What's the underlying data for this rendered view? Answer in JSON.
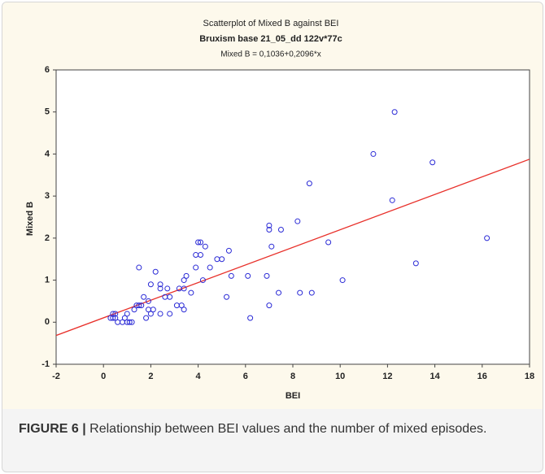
{
  "chart_data": {
    "type": "scatter",
    "title": "Scatterplot of Mixed B against BEI",
    "subtitle": "Bruxism base 21_05_dd 122v*77c",
    "annotation": "Mixed B = 0,1036+0,2096*x",
    "xlabel": "BEI",
    "ylabel": "Mixed B",
    "xlim": [
      -2,
      18
    ],
    "ylim": [
      -1,
      6
    ],
    "xticks": [
      -2,
      0,
      2,
      4,
      6,
      8,
      10,
      12,
      14,
      16,
      18
    ],
    "yticks": [
      -1,
      0,
      1,
      2,
      3,
      4,
      5,
      6
    ],
    "grid": false,
    "color": "#2b2bd6",
    "trendline": {
      "intercept": 0.1036,
      "slope": 0.2096,
      "color": "#e8302a"
    },
    "x": [
      0.3,
      0.4,
      0.4,
      0.5,
      0.5,
      0.6,
      0.8,
      0.9,
      1,
      1,
      1.1,
      1.2,
      1.3,
      1.4,
      1.5,
      1.5,
      1.6,
      1.7,
      1.8,
      1.9,
      1.9,
      2,
      2,
      2.1,
      2.2,
      2.4,
      2.4,
      2.4,
      2.6,
      2.7,
      2.8,
      2.8,
      3.1,
      3.2,
      3.3,
      3.4,
      3.4,
      3.5,
      3.4,
      3.7,
      3.9,
      3.9,
      4,
      4.1,
      4.1,
      4.2,
      4.3,
      4.5,
      4.8,
      5,
      5.2,
      5.3,
      5.4,
      6.1,
      6.2,
      6.9,
      7,
      7,
      7,
      7.1,
      7.4,
      7.5,
      8.2,
      8.3,
      8.7,
      8.8,
      9.5,
      10.1,
      11.4,
      12.2,
      12.3,
      13.2,
      13.9,
      16.2
    ],
    "y": [
      0.1,
      0.2,
      0.1,
      0.2,
      0.1,
      0,
      0,
      0.1,
      0,
      0.2,
      0,
      0,
      0.3,
      0.4,
      0.4,
      1.3,
      0.4,
      0.6,
      0.1,
      0.3,
      0.5,
      0.9,
      0.2,
      0.3,
      1.2,
      0.9,
      0.8,
      0.2,
      0.6,
      0.8,
      0.2,
      0.6,
      0.4,
      0.8,
      0.4,
      1.0,
      0.8,
      1.1,
      0.3,
      0.7,
      1.3,
      1.6,
      1.9,
      1.9,
      1.6,
      1.0,
      1.8,
      1.3,
      1.5,
      1.5,
      0.6,
      1.7,
      1.1,
      1.1,
      0.1,
      1.1,
      2.3,
      2.2,
      0.4,
      1.8,
      0.7,
      2.2,
      2.4,
      0.7,
      3.3,
      0.7,
      1.9,
      1.0,
      4.0,
      2.9,
      5.0,
      1.4,
      3.8,
      2.0
    ]
  },
  "caption": {
    "label": "FIGURE 6 |",
    "text": "Relationship between BEI values and the number of mixed episodes."
  }
}
